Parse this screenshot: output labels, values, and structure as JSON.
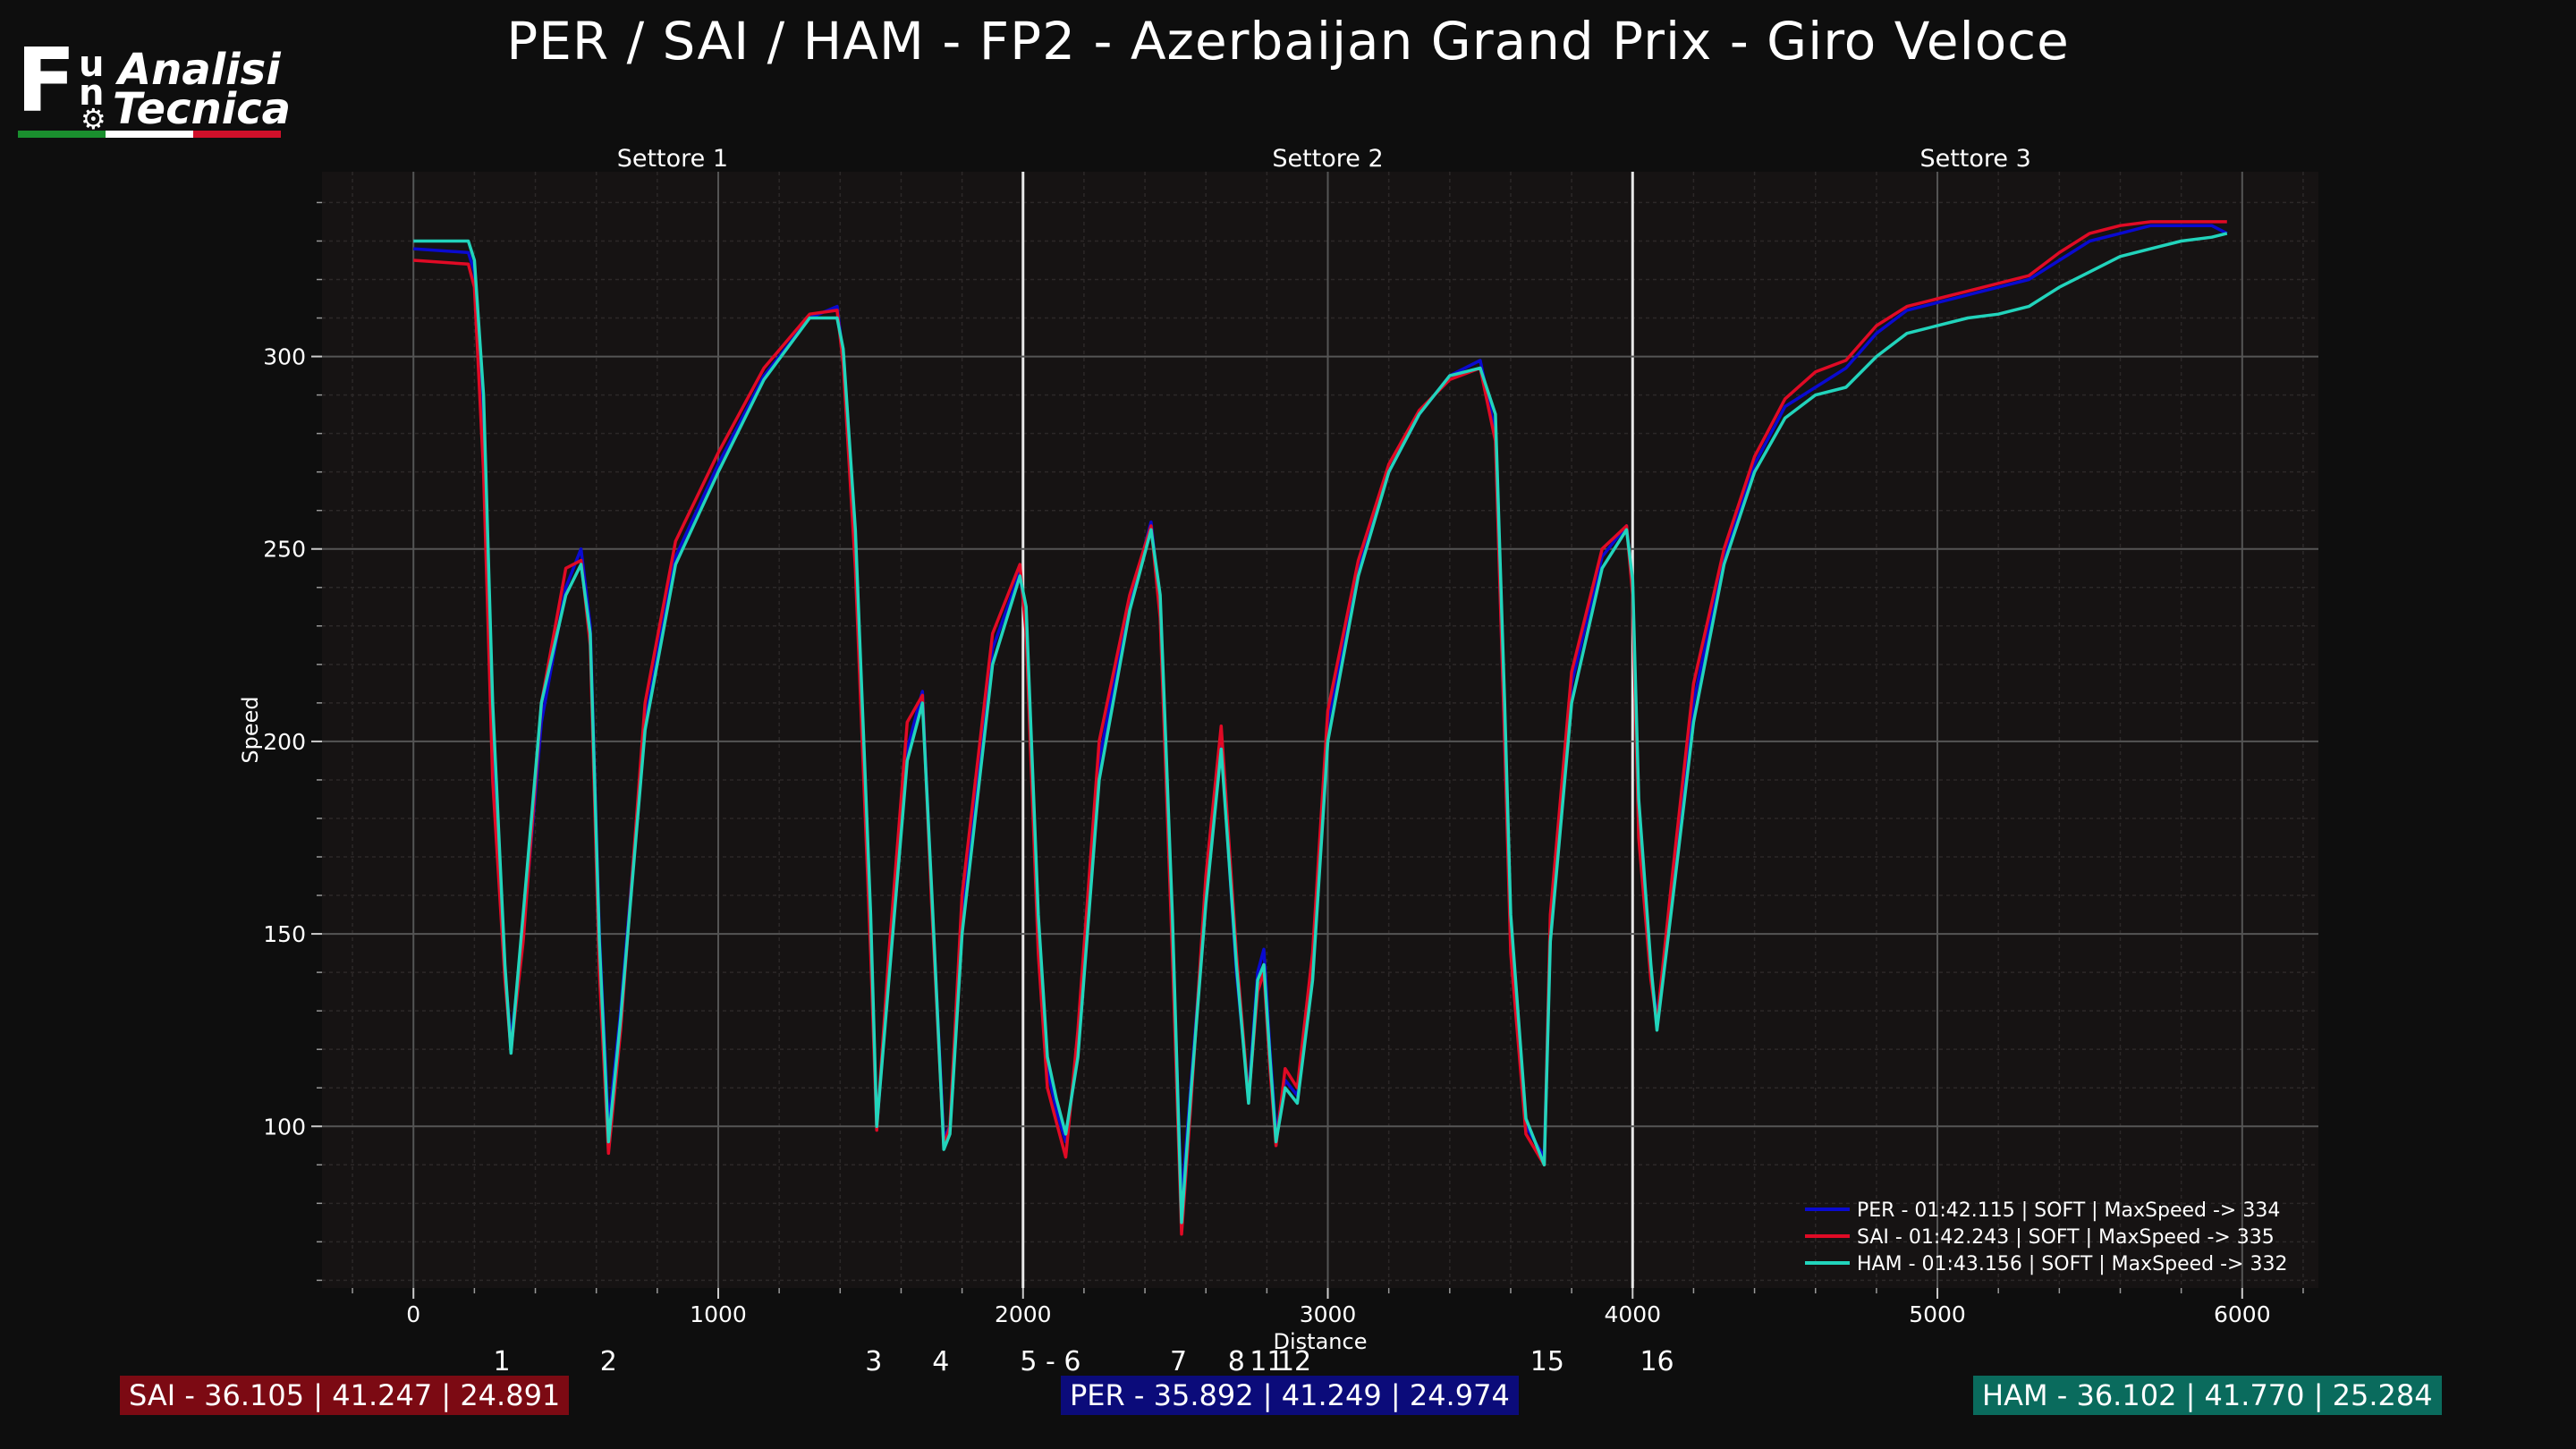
{
  "title": "PER / SAI / HAM - FP2 - Azerbaijan Grand Prix - Giro Veloce",
  "logo": {
    "f": "F",
    "u": "u",
    "n": "n",
    "word1": "Analisi",
    "word2": "Tecnica",
    "gear_icon": "gear-icon",
    "flag_colors": [
      "#1a8f2e",
      "#ffffff",
      "#d0102a"
    ]
  },
  "chart_data": {
    "type": "line",
    "xlabel": "Distance",
    "ylabel": "Speed",
    "xlim": [
      -300,
      6250
    ],
    "ylim": [
      58,
      348
    ],
    "grid": true,
    "xticks": [
      0,
      1000,
      2000,
      3000,
      4000,
      5000,
      6000
    ],
    "yticks": [
      100,
      150,
      200,
      250,
      300
    ],
    "sectors": [
      {
        "name": "Settore 1",
        "start": -300,
        "end": 2000
      },
      {
        "name": "Settore 2",
        "start": 2000,
        "end": 4000
      },
      {
        "name": "Settore 3",
        "start": 4000,
        "end": 6250
      }
    ],
    "sector_boundaries": [
      2000,
      4000
    ],
    "corners": [
      {
        "label": "1",
        "x": 290
      },
      {
        "label": "2",
        "x": 640
      },
      {
        "label": "3",
        "x": 1510
      },
      {
        "label": "4",
        "x": 1730
      },
      {
        "label": "5 - 6",
        "x": 2090
      },
      {
        "label": "7",
        "x": 2510
      },
      {
        "label": "8",
        "x": 2700
      },
      {
        "label": "11",
        "x": 2800
      },
      {
        "label": "12",
        "x": 2890
      },
      {
        "label": "15",
        "x": 3720
      },
      {
        "label": "16",
        "x": 4080
      }
    ],
    "legend_position": "bottom-right",
    "series": [
      {
        "name": "PER - 01:42.115 | SOFT |  MaxSpeed -> 334",
        "color": "#0a0ad0",
        "x": [
          0,
          180,
          200,
          230,
          260,
          300,
          320,
          360,
          420,
          500,
          550,
          580,
          610,
          640,
          680,
          760,
          860,
          1000,
          1150,
          1300,
          1390,
          1410,
          1450,
          1500,
          1520,
          1560,
          1620,
          1670,
          1700,
          1740,
          1760,
          1800,
          1900,
          1990,
          2010,
          2050,
          2080,
          2110,
          2140,
          2180,
          2250,
          2350,
          2420,
          2450,
          2490,
          2520,
          2550,
          2600,
          2650,
          2700,
          2740,
          2770,
          2790,
          2810,
          2830,
          2860,
          2900,
          2950,
          3000,
          3100,
          3200,
          3300,
          3400,
          3500,
          3550,
          3580,
          3600,
          3650,
          3710,
          3730,
          3800,
          3900,
          3980,
          4000,
          4020,
          4060,
          4080,
          4130,
          4200,
          4300,
          4400,
          4500,
          4600,
          4700,
          4800,
          4900,
          5000,
          5100,
          5200,
          5300,
          5400,
          5500,
          5600,
          5700,
          5800,
          5900,
          5950
        ],
        "y": [
          328,
          327,
          322,
          280,
          200,
          140,
          122,
          150,
          205,
          240,
          250,
          230,
          150,
          100,
          130,
          205,
          248,
          272,
          295,
          310,
          313,
          300,
          250,
          150,
          100,
          140,
          198,
          213,
          160,
          97,
          100,
          155,
          224,
          244,
          230,
          150,
          115,
          104,
          96,
          120,
          195,
          236,
          257,
          235,
          150,
          80,
          110,
          160,
          200,
          140,
          108,
          140,
          146,
          120,
          98,
          112,
          108,
          140,
          205,
          245,
          270,
          285,
          295,
          299,
          280,
          200,
          150,
          100,
          92,
          150,
          215,
          248,
          256,
          240,
          180,
          140,
          128,
          160,
          210,
          248,
          272,
          287,
          292,
          297,
          306,
          312,
          314,
          316,
          318,
          320,
          325,
          330,
          332,
          334,
          334,
          334,
          332
        ]
      },
      {
        "name": "SAI - 01:42.243 | SOFT |  MaxSpeed -> 335",
        "color": "#e00a25",
        "x": [
          0,
          180,
          200,
          230,
          260,
          300,
          320,
          360,
          420,
          500,
          550,
          580,
          610,
          640,
          680,
          760,
          860,
          1000,
          1150,
          1300,
          1390,
          1410,
          1450,
          1500,
          1520,
          1560,
          1620,
          1670,
          1700,
          1740,
          1760,
          1800,
          1900,
          1990,
          2010,
          2050,
          2080,
          2110,
          2140,
          2180,
          2250,
          2350,
          2420,
          2450,
          2490,
          2520,
          2550,
          2600,
          2650,
          2700,
          2740,
          2770,
          2790,
          2810,
          2830,
          2860,
          2900,
          2950,
          3000,
          3100,
          3200,
          3300,
          3400,
          3500,
          3550,
          3580,
          3600,
          3650,
          3710,
          3730,
          3800,
          3900,
          3980,
          4000,
          4020,
          4060,
          4080,
          4130,
          4200,
          4300,
          4400,
          4500,
          4600,
          4700,
          4800,
          4900,
          5000,
          5100,
          5200,
          5300,
          5400,
          5500,
          5600,
          5700,
          5800,
          5900,
          5950
        ],
        "y": [
          325,
          324,
          318,
          270,
          190,
          138,
          120,
          148,
          210,
          245,
          247,
          225,
          140,
          93,
          125,
          210,
          252,
          275,
          297,
          311,
          312,
          298,
          245,
          145,
          99,
          145,
          205,
          212,
          158,
          95,
          100,
          160,
          228,
          246,
          228,
          145,
          110,
          101,
          92,
          125,
          200,
          238,
          256,
          232,
          145,
          72,
          105,
          165,
          204,
          145,
          107,
          135,
          140,
          115,
          95,
          115,
          110,
          145,
          208,
          247,
          272,
          286,
          294,
          297,
          278,
          200,
          145,
          98,
          90,
          155,
          218,
          250,
          256,
          238,
          175,
          138,
          127,
          165,
          215,
          250,
          274,
          289,
          296,
          299,
          308,
          313,
          315,
          317,
          319,
          321,
          327,
          332,
          334,
          335,
          335,
          335,
          335
        ]
      },
      {
        "name": "HAM - 01:43.156 | SOFT |  MaxSpeed -> 332",
        "color": "#22d4bc",
        "x": [
          0,
          180,
          200,
          230,
          260,
          300,
          320,
          360,
          420,
          500,
          550,
          580,
          610,
          640,
          680,
          760,
          860,
          1000,
          1150,
          1300,
          1390,
          1410,
          1450,
          1500,
          1520,
          1560,
          1620,
          1670,
          1700,
          1740,
          1760,
          1800,
          1900,
          1990,
          2010,
          2050,
          2080,
          2110,
          2140,
          2180,
          2250,
          2350,
          2420,
          2450,
          2490,
          2520,
          2550,
          2600,
          2650,
          2700,
          2740,
          2770,
          2790,
          2810,
          2830,
          2860,
          2900,
          2950,
          3000,
          3100,
          3200,
          3300,
          3400,
          3500,
          3550,
          3580,
          3600,
          3650,
          3710,
          3730,
          3800,
          3900,
          3980,
          4000,
          4020,
          4060,
          4080,
          4130,
          4200,
          4300,
          4400,
          4500,
          4600,
          4700,
          4800,
          4900,
          5000,
          5100,
          5200,
          5300,
          5400,
          5500,
          5600,
          5700,
          5800,
          5900,
          5950
        ],
        "y": [
          330,
          330,
          325,
          290,
          210,
          142,
          119,
          155,
          210,
          238,
          246,
          228,
          148,
          96,
          128,
          203,
          246,
          270,
          294,
          310,
          310,
          302,
          255,
          155,
          100,
          138,
          195,
          210,
          162,
          94,
          98,
          150,
          220,
          243,
          235,
          155,
          118,
          107,
          98,
          118,
          190,
          234,
          255,
          238,
          155,
          75,
          108,
          158,
          198,
          142,
          106,
          138,
          142,
          118,
          96,
          110,
          106,
          138,
          200,
          243,
          270,
          285,
          295,
          297,
          285,
          210,
          155,
          102,
          90,
          148,
          210,
          245,
          255,
          242,
          185,
          142,
          125,
          158,
          205,
          246,
          270,
          284,
          290,
          292,
          300,
          306,
          308,
          310,
          311,
          313,
          318,
          322,
          326,
          328,
          330,
          331,
          332
        ]
      }
    ]
  },
  "boxes": [
    {
      "text": "SAI - 36.105 | 41.247 | 24.891",
      "color": "#7c0a13"
    },
    {
      "text": "PER - 35.892 | 41.249 | 24.974",
      "color": "#0b0b7a"
    },
    {
      "text": "HAM - 36.102 | 41.770 | 25.284",
      "color": "#0a6b5d"
    }
  ]
}
